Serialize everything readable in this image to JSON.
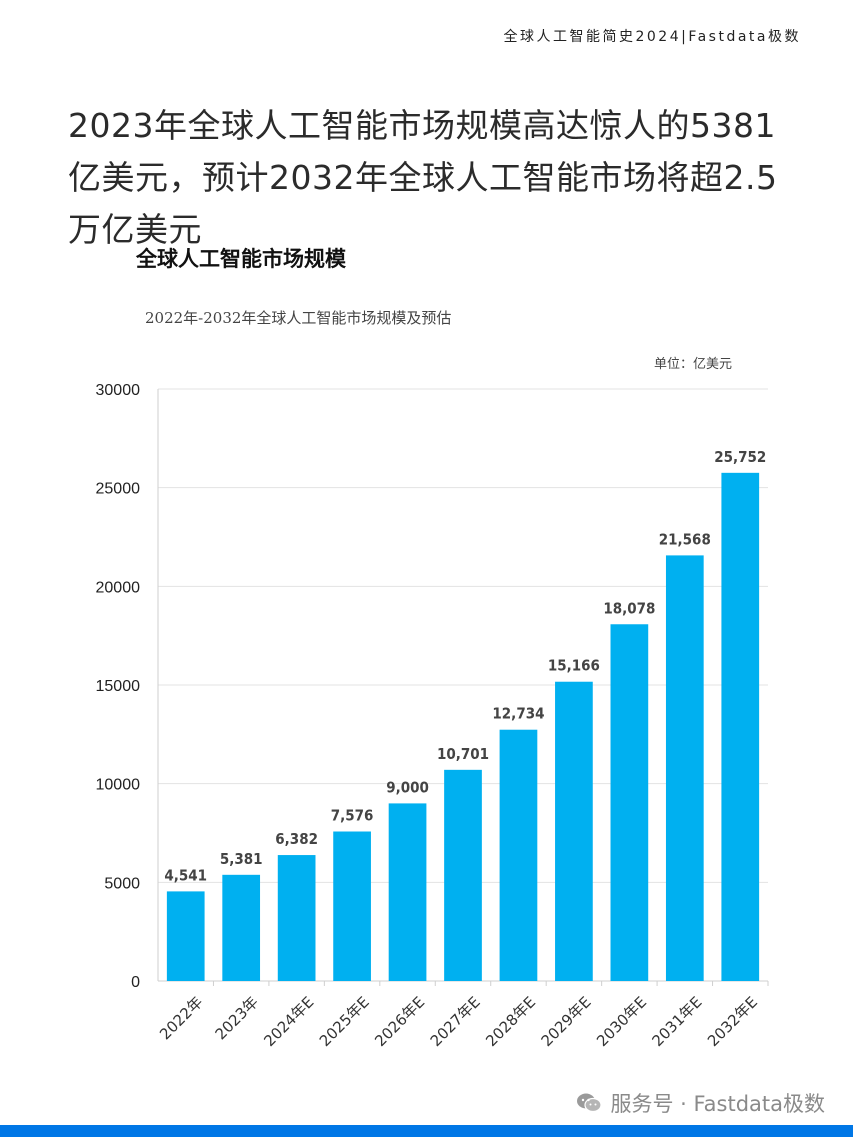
{
  "header": {
    "brand": "全球人工智能简史2024|Fastdata极数"
  },
  "headline": "2023年全球人工智能市场规模高达惊人的5381亿美元，预计2032年全球人工智能市场将超2.5万亿美元",
  "section_title": "全球人工智能市场规模",
  "footer": {
    "watermark": "服务号 · Fastdata极数",
    "icon": "wechat-icon",
    "bar_color": "#0077e6"
  },
  "chart_data": {
    "type": "bar",
    "title": "2022年-2032年全球人工智能市场规模及预估",
    "unit": "单位：亿美元",
    "categories": [
      "2022年",
      "2023年",
      "2024年E",
      "2025年E",
      "2026年E",
      "2027年E",
      "2028年E",
      "2029年E",
      "2030年E",
      "2031年E",
      "2032年E"
    ],
    "values": [
      4541,
      5381,
      6382,
      7576,
      9000,
      10701,
      12734,
      15166,
      18078,
      21568,
      25752
    ],
    "data_labels": [
      "4,541",
      "5,381",
      "6,382",
      "7,576",
      "9,000",
      "10,701",
      "12,734",
      "15,166",
      "18,078",
      "21,568",
      "25,752"
    ],
    "ylim": [
      0,
      30000
    ],
    "yticks": [
      0,
      5000,
      10000,
      15000,
      20000,
      25000,
      30000
    ],
    "grid": true,
    "bar_color": "#00b0f0"
  }
}
